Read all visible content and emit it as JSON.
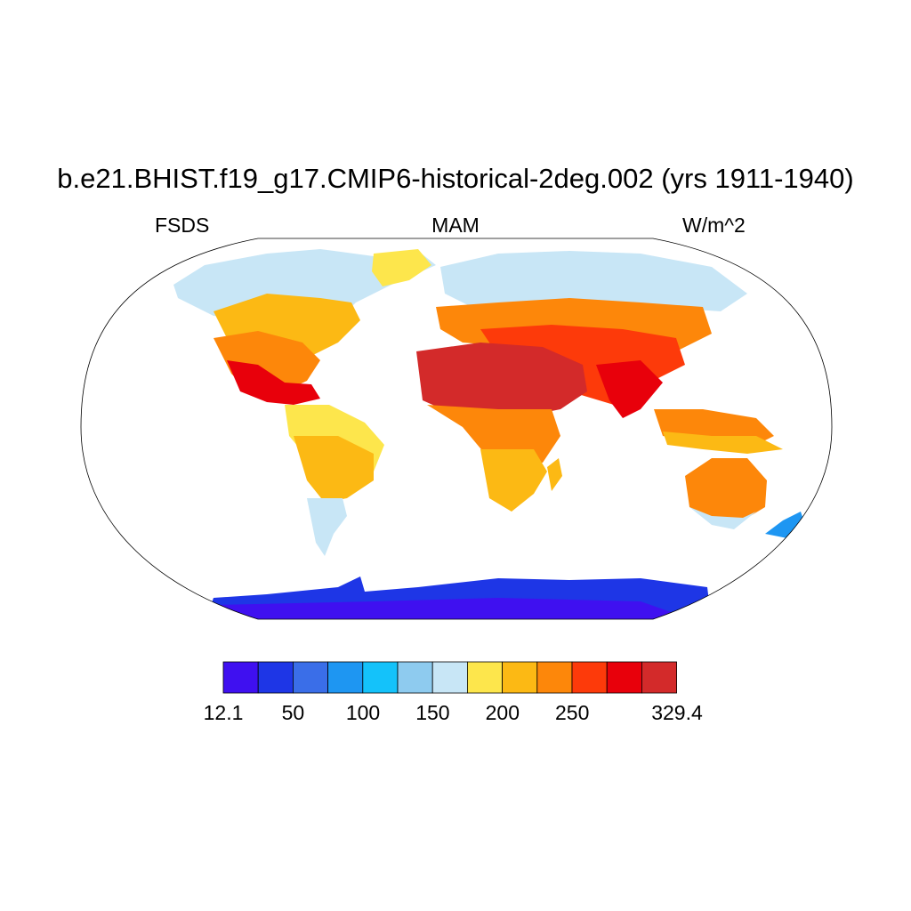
{
  "title": "b.e21.BHIST.f19_g17.CMIP6-historical-2deg.002 (yrs 1911-1940)",
  "left_label": "FSDS",
  "center_label": "MAM",
  "right_label": "W/m^2",
  "colorbar": {
    "colors": [
      "#3f10f0",
      "#1e36e6",
      "#3a6ee8",
      "#1e96f2",
      "#14c2fa",
      "#8ecbef",
      "#c8e6f6",
      "#fde64c",
      "#fcb914",
      "#fd870a",
      "#fd3a0a",
      "#e8000b",
      "#d32a2a"
    ],
    "labels": [
      "12.1",
      "50",
      "100",
      "150",
      "200",
      "250",
      "329.4"
    ]
  }
}
